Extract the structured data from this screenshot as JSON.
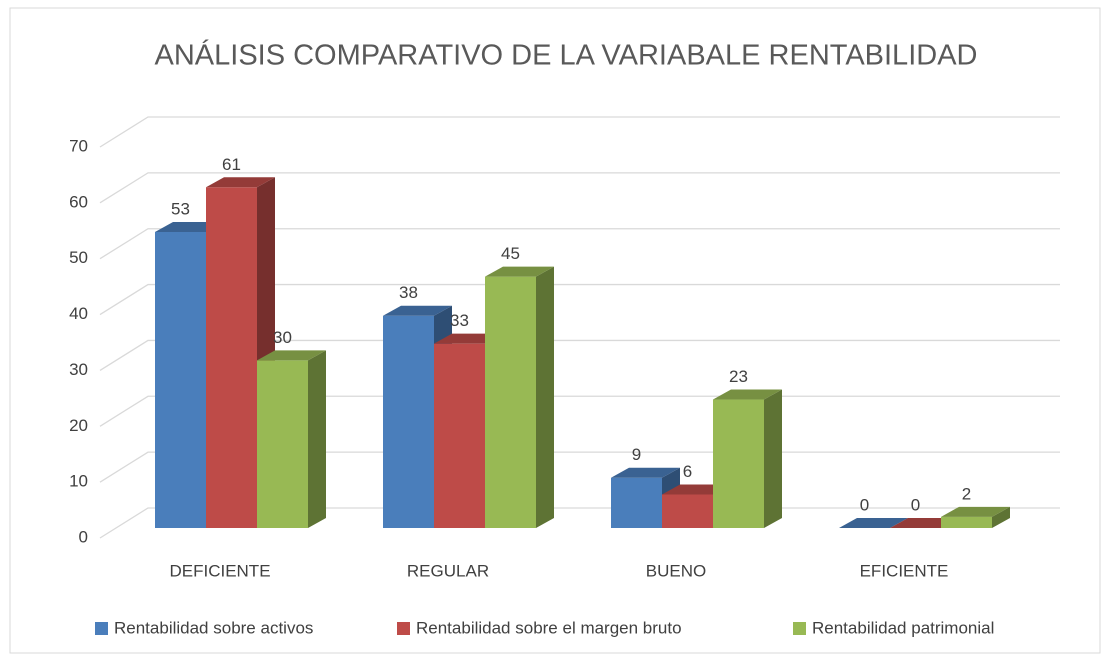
{
  "chart_data": {
    "type": "bar3d",
    "title": "ANÁLISIS COMPARATIVO DE LA VARIABALE RENTABILIDAD",
    "categories": [
      "DEFICIENTE",
      "REGULAR",
      "BUENO",
      "EFICIENTE"
    ],
    "series": [
      {
        "name": "Rentabilidad sobre activos",
        "color": "#4a7ebb",
        "values": [
          53,
          38,
          9,
          0
        ]
      },
      {
        "name": "Rentabilidad sobre el margen bruto",
        "color": "#be4b48",
        "values": [
          61,
          33,
          6,
          0
        ]
      },
      {
        "name": "Rentabilidad patrimonial",
        "color": "#98b954",
        "values": [
          30,
          45,
          23,
          2
        ]
      }
    ],
    "ylim": [
      0,
      70
    ],
    "yticks": [
      0,
      10,
      20,
      30,
      40,
      50,
      60,
      70
    ],
    "grid": true,
    "legend": "bottom"
  }
}
